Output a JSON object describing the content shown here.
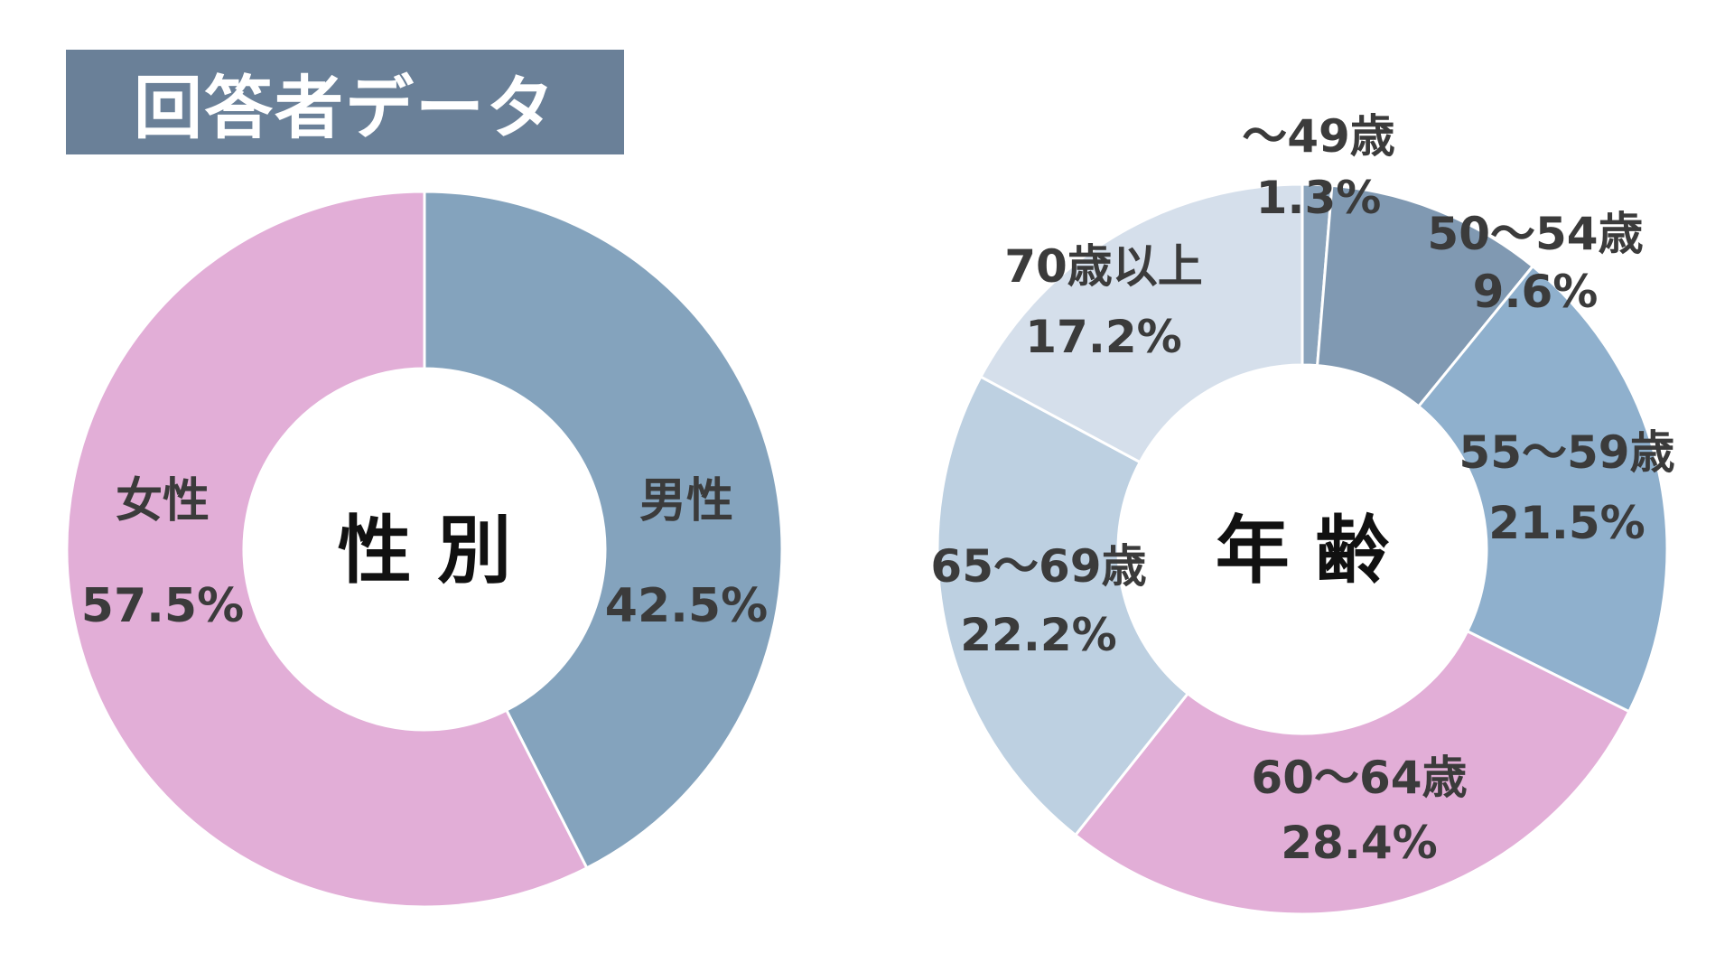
{
  "page_title": "回答者データ",
  "colors": {
    "title_bg": "#6a8098",
    "title_text": "#ffffff",
    "label_text": "#3b3b3b",
    "center_text": "#111111",
    "slice_border": "#ffffff"
  },
  "chart_data": [
    {
      "type": "donut",
      "center_label": "性 別",
      "slices": [
        {
          "category": "男性",
          "value": 42.5,
          "label": "42.5%",
          "color": "#84a3bd"
        },
        {
          "category": "女性",
          "value": 57.5,
          "label": "57.5%",
          "color": "#e2aed7"
        }
      ]
    },
    {
      "type": "donut",
      "center_label": "年 齢",
      "slices": [
        {
          "category": "～49歳",
          "value": 1.3,
          "label": "1.3%",
          "color": "#8aa3bb"
        },
        {
          "category": "50～54歳",
          "value": 9.6,
          "label": "9.6%",
          "color": "#8099b2"
        },
        {
          "category": "55～59歳",
          "value": 21.5,
          "label": "21.5%",
          "color": "#8fb0cd"
        },
        {
          "category": "60～64歳",
          "value": 28.4,
          "label": "28.4%",
          "color": "#e2aed7"
        },
        {
          "category": "65～69歳",
          "value": 22.2,
          "label": "22.2%",
          "color": "#bdd0e1"
        },
        {
          "category": "70歳以上",
          "value": 17.2,
          "label": "17.2%",
          "color": "#d5dfeb"
        }
      ]
    }
  ]
}
